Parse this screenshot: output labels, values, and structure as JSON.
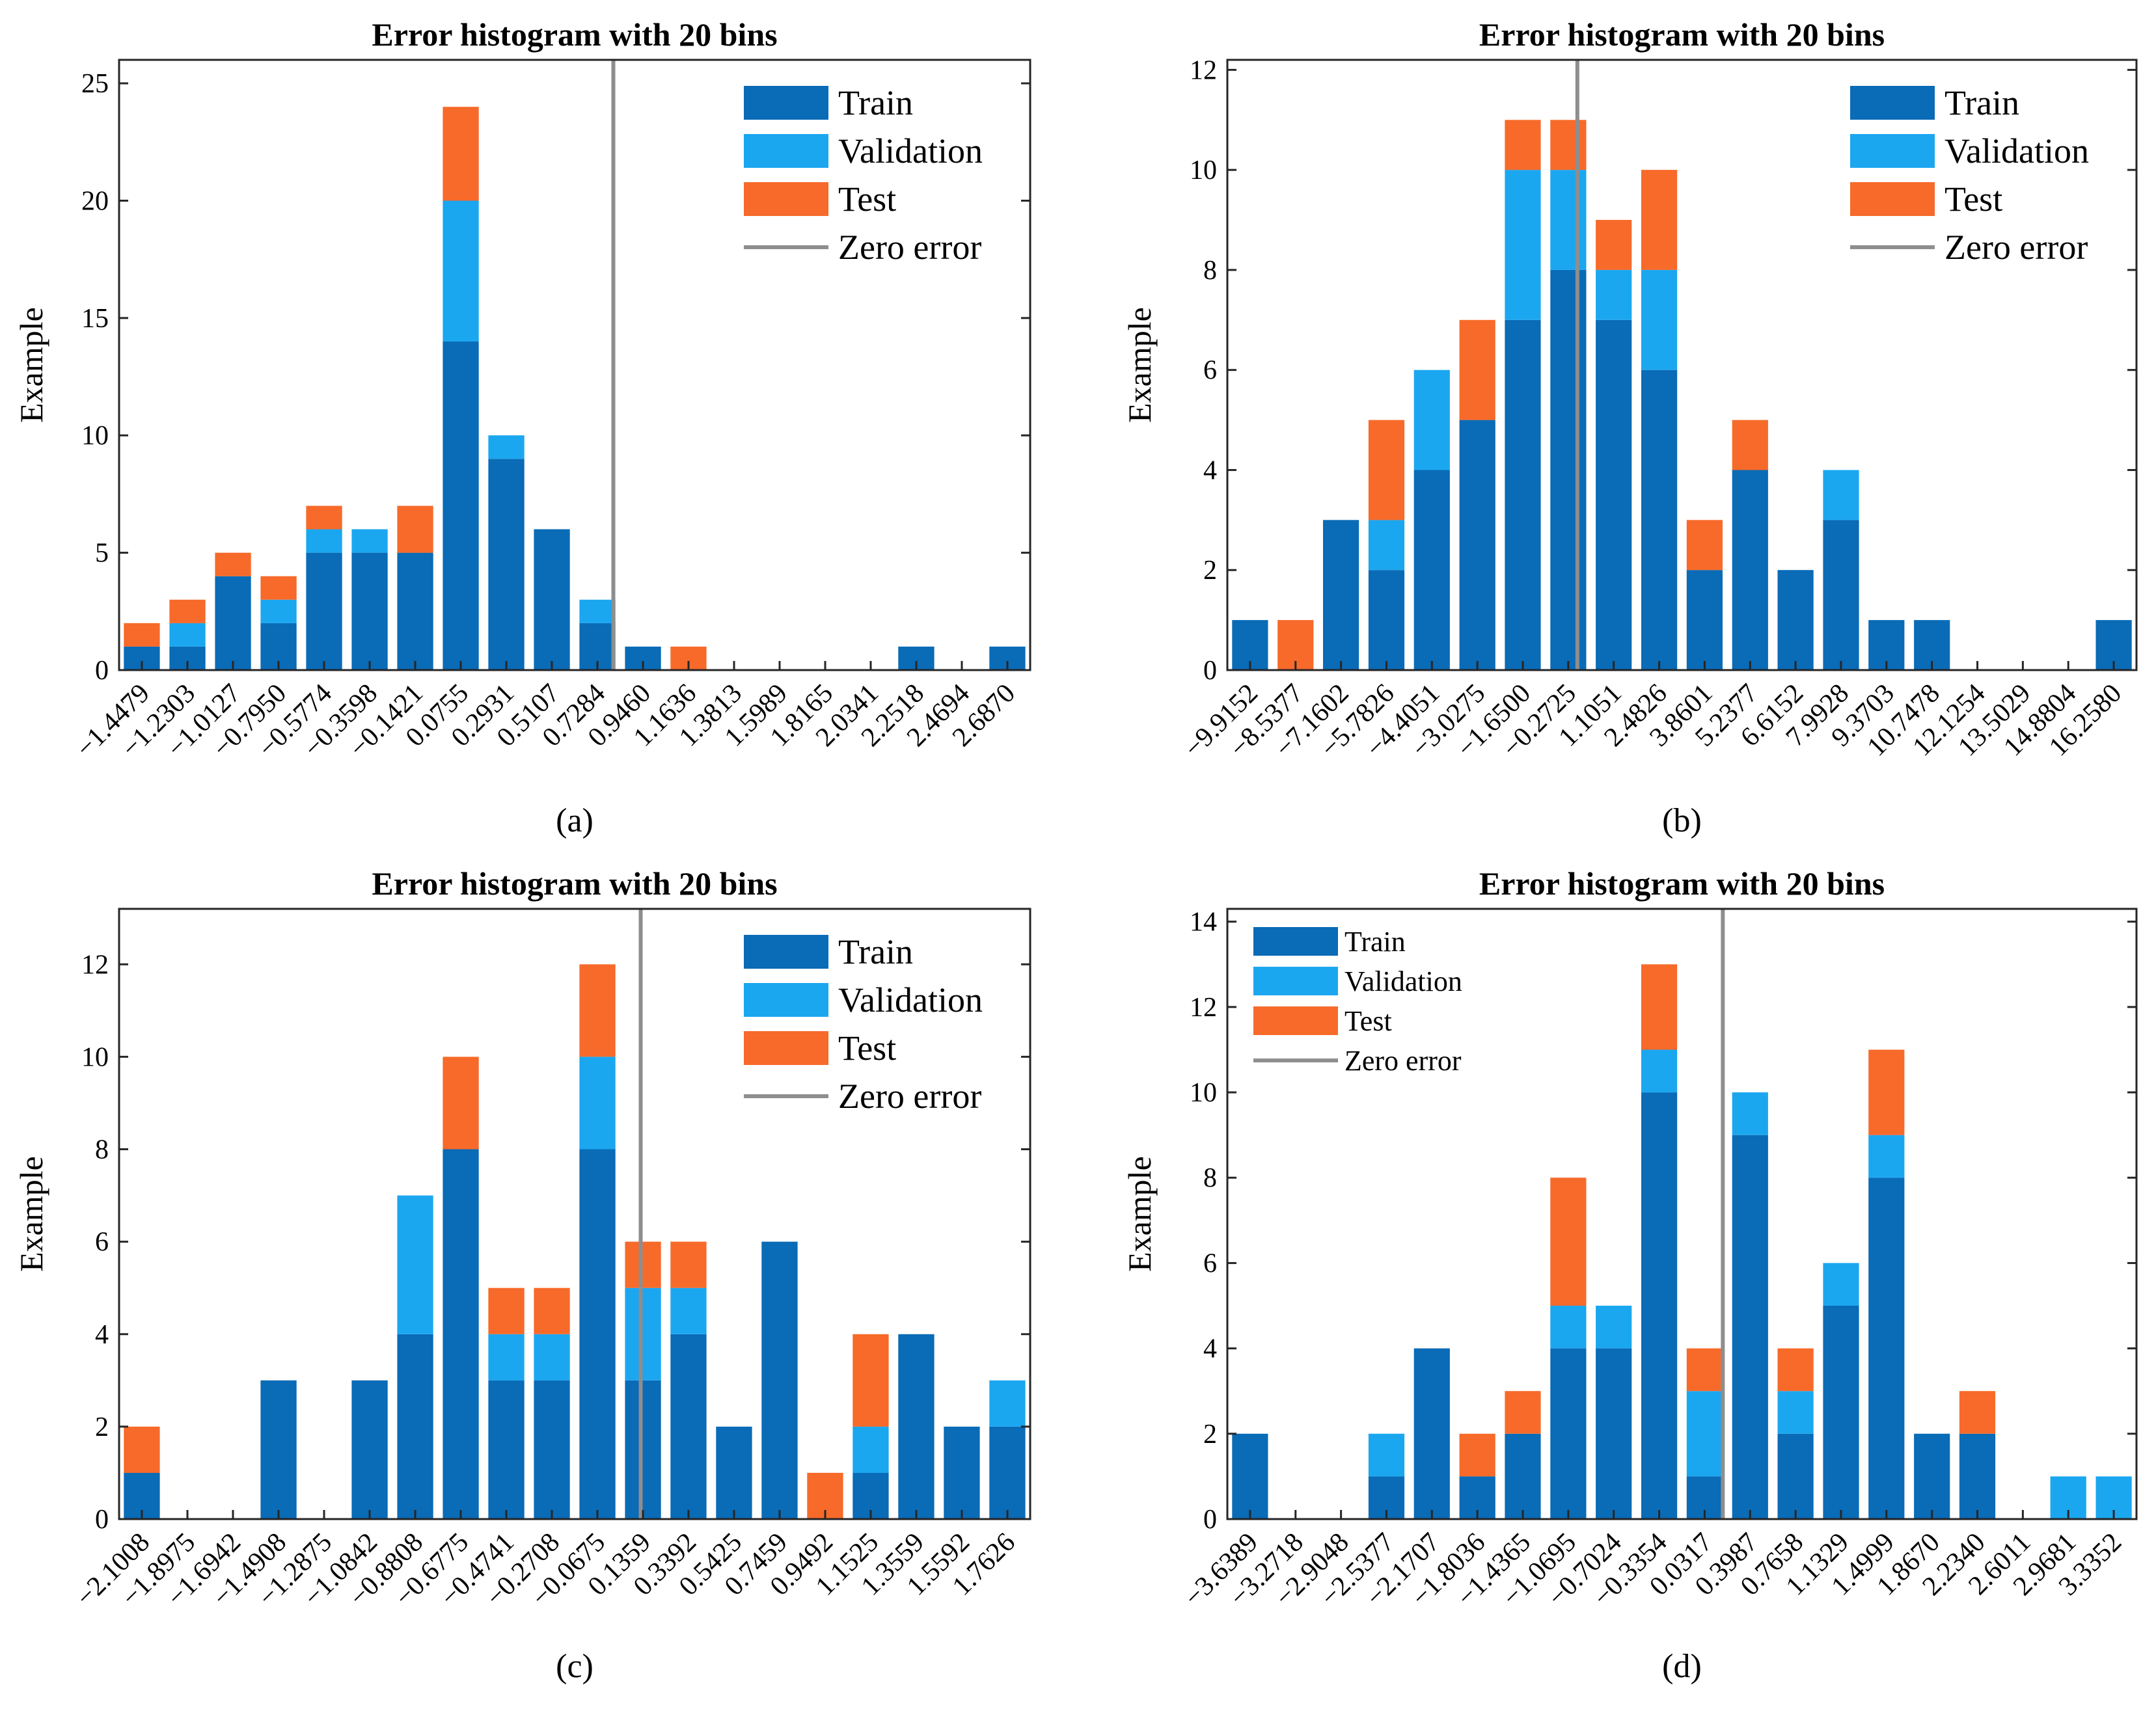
{
  "colors": {
    "train": "#0a6bb6",
    "validation": "#1ba7f0",
    "test": "#f76a2a",
    "zero_error": "#8e8e8e"
  },
  "chart_data": [
    {
      "type": "bar",
      "stacked": true,
      "title": "Error histogram with 20 bins",
      "ylabel": "Example",
      "panel_label": "(a)",
      "ylim": [
        0,
        26
      ],
      "yticks": [
        0,
        5,
        10,
        15,
        20,
        25
      ],
      "zero_error_bin": 10.85,
      "legend": {
        "placement": "top-right",
        "entries": [
          "Train",
          "Validation",
          "Test",
          "Zero error"
        ]
      },
      "categories": [
        "-1.4479",
        "-1.2303",
        "-1.0127",
        "-0.7950",
        "-0.5774",
        "-0.3598",
        "-0.1421",
        "0.0755",
        "0.2931",
        "0.5107",
        "0.7284",
        "0.9460",
        "1.1636",
        "1.3813",
        "1.5989",
        "1.8165",
        "2.0341",
        "2.2518",
        "2.4694",
        "2.6870"
      ],
      "series": [
        {
          "name": "Train",
          "values": [
            1,
            1,
            4,
            2,
            5,
            5,
            5,
            14,
            9,
            6,
            2,
            1,
            0,
            0,
            0,
            0,
            0,
            1,
            0,
            1
          ]
        },
        {
          "name": "Validation",
          "values": [
            0,
            1,
            0,
            1,
            1,
            1,
            0,
            6,
            1,
            0,
            1,
            0,
            0,
            0,
            0,
            0,
            0,
            0,
            0,
            0
          ]
        },
        {
          "name": "Test",
          "values": [
            1,
            1,
            1,
            1,
            1,
            0,
            2,
            4,
            0,
            0,
            0,
            0,
            1,
            0,
            0,
            0,
            0,
            0,
            0,
            0
          ]
        }
      ]
    },
    {
      "type": "bar",
      "stacked": true,
      "title": "Error histogram with 20 bins",
      "ylabel": "Example",
      "panel_label": "(b)",
      "ylim": [
        0,
        12.2
      ],
      "yticks": [
        0,
        2,
        4,
        6,
        8,
        10,
        12
      ],
      "zero_error_bin": 7.7,
      "legend": {
        "placement": "top-right",
        "entries": [
          "Train",
          "Validation",
          "Test",
          "Zero error"
        ]
      },
      "categories": [
        "-9.9152",
        "-8.5377",
        "-7.1602",
        "-5.7826",
        "-4.4051",
        "-3.0275",
        "-1.6500",
        "-0.2725",
        "1.1051",
        "2.4826",
        "3.8601",
        "5.2377",
        "6.6152",
        "7.9928",
        "9.3703",
        "10.7478",
        "12.1254",
        "13.5029",
        "14.8804",
        "16.2580"
      ],
      "series": [
        {
          "name": "Train",
          "values": [
            1,
            0,
            3,
            2,
            4,
            5,
            7,
            8,
            7,
            6,
            2,
            4,
            2,
            3,
            1,
            1,
            0,
            0,
            0,
            1
          ]
        },
        {
          "name": "Validation",
          "values": [
            0,
            0,
            0,
            1,
            2,
            0,
            3,
            2,
            1,
            2,
            0,
            0,
            0,
            1,
            0,
            0,
            0,
            0,
            0,
            0
          ]
        },
        {
          "name": "Test",
          "values": [
            0,
            1,
            0,
            2,
            0,
            2,
            1,
            1,
            1,
            2,
            1,
            1,
            0,
            0,
            0,
            0,
            0,
            0,
            0,
            0
          ]
        }
      ]
    },
    {
      "type": "bar",
      "stacked": true,
      "title": "Error histogram with 20 bins",
      "ylabel": "Example",
      "panel_label": "(c)",
      "ylim": [
        0,
        13.2
      ],
      "yticks": [
        0,
        2,
        4,
        6,
        8,
        10,
        12
      ],
      "zero_error_bin": 11.45,
      "legend": {
        "placement": "top-right",
        "entries": [
          "Train",
          "Validation",
          "Test",
          "Zero error"
        ]
      },
      "categories": [
        "-2.1008",
        "-1.8975",
        "-1.6942",
        "-1.4908",
        "-1.2875",
        "-1.0842",
        "-0.8808",
        "-0.6775",
        "-0.4741",
        "-0.2708",
        "-0.0675",
        "0.1359",
        "0.3392",
        "0.5425",
        "0.7459",
        "0.9492",
        "1.1525",
        "1.3559",
        "1.5592",
        "1.7626"
      ],
      "series": [
        {
          "name": "Train",
          "values": [
            1,
            0,
            0,
            3,
            0,
            3,
            4,
            8,
            3,
            3,
            8,
            3,
            4,
            2,
            6,
            0,
            1,
            4,
            2,
            2
          ]
        },
        {
          "name": "Validation",
          "values": [
            0,
            0,
            0,
            0,
            0,
            0,
            3,
            0,
            1,
            1,
            2,
            2,
            1,
            0,
            0,
            0,
            1,
            0,
            0,
            1
          ]
        },
        {
          "name": "Test",
          "values": [
            1,
            0,
            0,
            0,
            0,
            0,
            0,
            2,
            1,
            1,
            2,
            1,
            1,
            0,
            0,
            1,
            2,
            0,
            0,
            0
          ]
        }
      ]
    },
    {
      "type": "bar",
      "stacked": true,
      "title": "Error histogram with 20 bins",
      "ylabel": "Example",
      "panel_label": "(d)",
      "ylim": [
        0,
        14.3
      ],
      "yticks": [
        0,
        2,
        4,
        6,
        8,
        10,
        12,
        14
      ],
      "zero_error_bin": 10.9,
      "legend": {
        "placement": "top-left",
        "entries": [
          "Train",
          "Validation",
          "Test",
          "Zero error"
        ]
      },
      "categories": [
        "-3.6389",
        "-3.2718",
        "-2.9048",
        "-2.5377",
        "-2.1707",
        "-1.8036",
        "-1.4365",
        "-1.0695",
        "-0.7024",
        "-0.3354",
        "0.0317",
        "0.3987",
        "0.7658",
        "1.1329",
        "1.4999",
        "1.8670",
        "2.2340",
        "2.6011",
        "2.9681",
        "3.3352"
      ],
      "series": [
        {
          "name": "Train",
          "values": [
            2,
            0,
            0,
            1,
            4,
            1,
            2,
            4,
            4,
            10,
            1,
            9,
            2,
            5,
            8,
            2,
            2,
            0,
            0,
            0
          ]
        },
        {
          "name": "Validation",
          "values": [
            0,
            0,
            0,
            1,
            0,
            0,
            0,
            1,
            1,
            1,
            2,
            1,
            1,
            1,
            1,
            0,
            0,
            0,
            1,
            1
          ]
        },
        {
          "name": "Test",
          "values": [
            0,
            0,
            0,
            0,
            0,
            1,
            1,
            3,
            0,
            2,
            1,
            0,
            1,
            0,
            2,
            0,
            1,
            0,
            0,
            0
          ]
        }
      ]
    }
  ]
}
